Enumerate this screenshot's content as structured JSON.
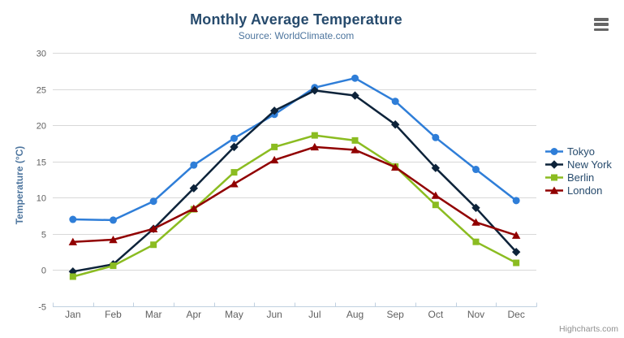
{
  "chart": {
    "title": "Monthly Average Temperature",
    "subtitle": "Source: WorldClimate.com",
    "credits": "Highcharts.com",
    "export_button_icon": "hamburger-icon",
    "background": "#ffffff",
    "grid_color": "#d8d8d8",
    "axis_line_color": "#c0d0e0",
    "tick_label_color": "#606060"
  },
  "chart_data": {
    "type": "line",
    "title": "Monthly Average Temperature",
    "subtitle": "Source: WorldClimate.com",
    "categories": [
      "Jan",
      "Feb",
      "Mar",
      "Apr",
      "May",
      "Jun",
      "Jul",
      "Aug",
      "Sep",
      "Oct",
      "Nov",
      "Dec"
    ],
    "xlabel": "",
    "ylabel": "Temperature (°C)",
    "ylim": [
      -5,
      30
    ],
    "yticks": [
      -5,
      0,
      5,
      10,
      15,
      20,
      25,
      30
    ],
    "grid": true,
    "legend_position": "right",
    "series": [
      {
        "name": "Tokyo",
        "color": "#2f7ed8",
        "marker": "circle",
        "values": [
          7.0,
          6.9,
          9.5,
          14.5,
          18.2,
          21.5,
          25.2,
          26.5,
          23.3,
          18.3,
          13.9,
          9.6
        ]
      },
      {
        "name": "New York",
        "color": "#0d233a",
        "marker": "diamond",
        "values": [
          -0.2,
          0.8,
          5.7,
          11.3,
          17.0,
          22.0,
          24.8,
          24.1,
          20.1,
          14.1,
          8.6,
          2.5
        ]
      },
      {
        "name": "Berlin",
        "color": "#8bbc21",
        "marker": "square",
        "values": [
          -0.9,
          0.6,
          3.5,
          8.4,
          13.5,
          17.0,
          18.6,
          17.9,
          14.3,
          9.0,
          3.9,
          1.0
        ]
      },
      {
        "name": "London",
        "color": "#910000",
        "marker": "triangle",
        "values": [
          3.9,
          4.2,
          5.7,
          8.5,
          11.9,
          15.2,
          17.0,
          16.6,
          14.2,
          10.3,
          6.6,
          4.8
        ]
      }
    ]
  }
}
